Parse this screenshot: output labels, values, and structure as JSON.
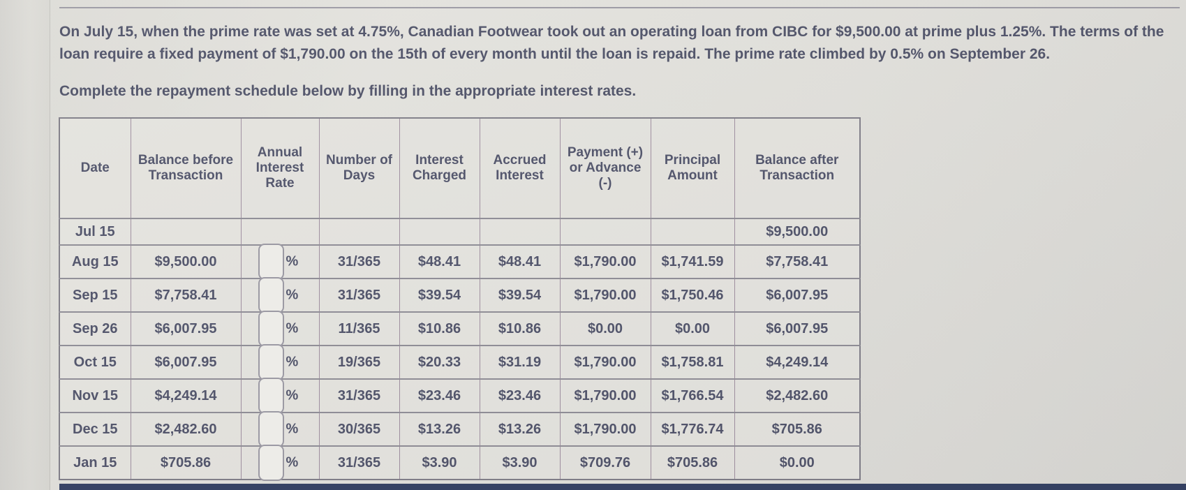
{
  "page": {
    "problem_text": "On July 15, when the prime rate was set at 4.75%, Canadian Footwear took out an operating loan from CIBC for $9,500.00 at prime plus 1.25%. The terms of the loan require a fixed payment of $1,790.00 on the 15th of every month until the loan is repaid. The prime rate climbed by 0.5% on September 26.",
    "instruction_text": "Complete the repayment schedule below by filling in the appropriate interest rates."
  },
  "table": {
    "headers": [
      "Date",
      "Balance before Transaction",
      "Annual Interest Rate",
      "Number of Days",
      "Interest Charged",
      "Accrued Interest",
      "Payment (+) or Advance (-)",
      "Principal Amount",
      "Balance after Transaction"
    ],
    "percent_suffix": "%",
    "rate_input_value": "",
    "rows": [
      {
        "date": "Jul 15",
        "balance_before": "",
        "days": "",
        "interest_charged": "",
        "accrued_interest": "",
        "payment_or_advance": "",
        "principal": "",
        "balance_after": "$9,500.00"
      },
      {
        "date": "Aug 15",
        "balance_before": "$9,500.00",
        "days": "31/365",
        "interest_charged": "$48.41",
        "accrued_interest": "$48.41",
        "payment_or_advance": "$1,790.00",
        "principal": "$1,741.59",
        "balance_after": "$7,758.41"
      },
      {
        "date": "Sep 15",
        "balance_before": "$7,758.41",
        "days": "31/365",
        "interest_charged": "$39.54",
        "accrued_interest": "$39.54",
        "payment_or_advance": "$1,790.00",
        "principal": "$1,750.46",
        "balance_after": "$6,007.95"
      },
      {
        "date": "Sep 26",
        "balance_before": "$6,007.95",
        "days": "11/365",
        "interest_charged": "$10.86",
        "accrued_interest": "$10.86",
        "payment_or_advance": "$0.00",
        "principal": "$0.00",
        "balance_after": "$6,007.95"
      },
      {
        "date": "Oct 15",
        "balance_before": "$6,007.95",
        "days": "19/365",
        "interest_charged": "$20.33",
        "accrued_interest": "$31.19",
        "payment_or_advance": "$1,790.00",
        "principal": "$1,758.81",
        "balance_after": "$4,249.14"
      },
      {
        "date": "Nov 15",
        "balance_before": "$4,249.14",
        "days": "31/365",
        "interest_charged": "$23.46",
        "accrued_interest": "$23.46",
        "payment_or_advance": "$1,790.00",
        "principal": "$1,766.54",
        "balance_after": "$2,482.60"
      },
      {
        "date": "Dec 15",
        "balance_before": "$2,482.60",
        "days": "30/365",
        "interest_charged": "$13.26",
        "accrued_interest": "$13.26",
        "payment_or_advance": "$1,790.00",
        "principal": "$1,776.74",
        "balance_after": "$705.86"
      },
      {
        "date": "Jan 15",
        "balance_before": "$705.86",
        "days": "31/365",
        "interest_charged": "$3.90",
        "accrued_interest": "$3.90",
        "payment_or_advance": "$709.76",
        "principal": "$705.86",
        "balance_after": "$0.00"
      }
    ]
  },
  "colors": {
    "background": "#e3e2dd",
    "text": "#4f5268",
    "table_border_vertical": "#a08fa0",
    "table_border_horizontal": "#8f8d96",
    "input_box_fill": "#edece8",
    "input_box_border": "#9c9aa4",
    "bottom_bar": "#334063"
  }
}
